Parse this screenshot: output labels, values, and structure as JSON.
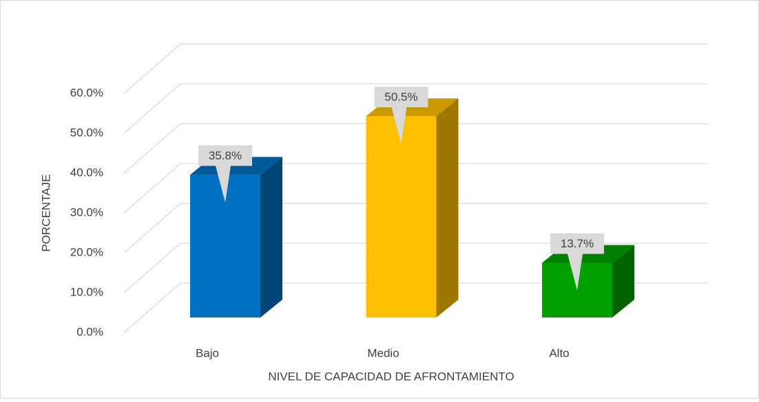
{
  "chart_data": {
    "type": "bar3d",
    "categories": [
      "Bajo",
      "Medio",
      "Alto"
    ],
    "values": [
      35.8,
      50.5,
      13.7
    ],
    "value_labels": [
      "35.8%",
      "50.5%",
      "13.7%"
    ],
    "colors": [
      "#0070c0",
      "#ffc000",
      "#00a000"
    ],
    "ylim": [
      0,
      60
    ],
    "yticks": [
      {
        "value": 0,
        "label": "0.0%"
      },
      {
        "value": 10,
        "label": "10.0%"
      },
      {
        "value": 20,
        "label": "20.0%"
      },
      {
        "value": 30,
        "label": "30.0%"
      },
      {
        "value": 40,
        "label": "40.0%"
      },
      {
        "value": 50,
        "label": "50.0%"
      },
      {
        "value": 60,
        "label": "60.0%"
      }
    ],
    "xlabel": "NIVEL DE CAPACIDAD DE AFRONTAMIENTO",
    "ylabel": "PORCENTAJE",
    "grid": true
  }
}
